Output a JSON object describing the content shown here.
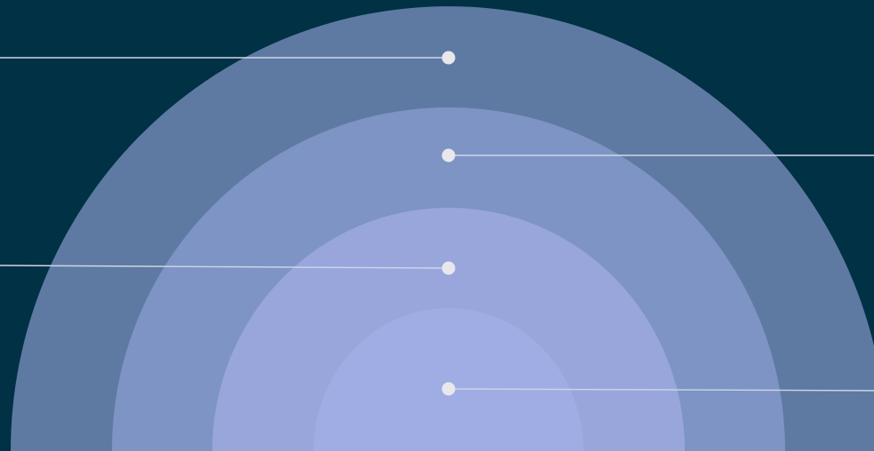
{
  "diagram": {
    "background_color": "#003145",
    "rings": [
      {
        "color": "#5e7aa2"
      },
      {
        "color": "#7e94c4"
      },
      {
        "color": "#98a6dc"
      },
      {
        "color": "#a0ade4"
      }
    ],
    "markers": [
      {
        "side": "left"
      },
      {
        "side": "right"
      },
      {
        "side": "left"
      },
      {
        "side": "right"
      }
    ],
    "marker_color": "#e8e8ec",
    "connector_color": "#cfd6e8"
  }
}
